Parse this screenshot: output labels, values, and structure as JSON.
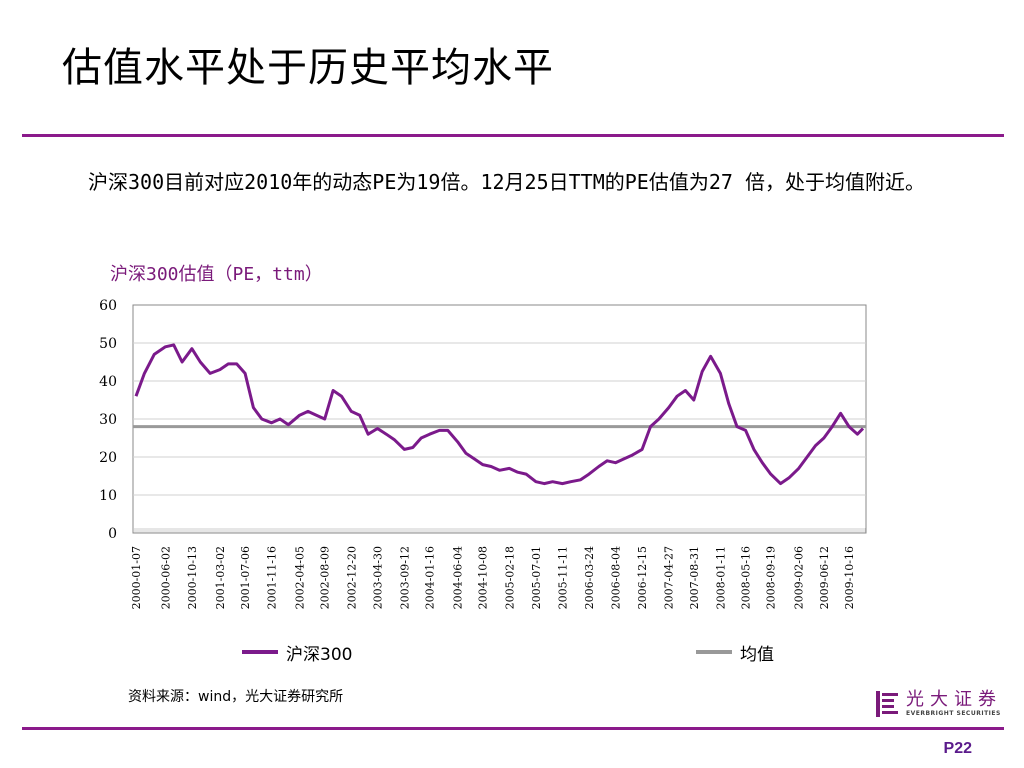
{
  "slide": {
    "title": "估值水平处于历史平均水平",
    "body": "沪深300目前对应2010年的动态PE为19倍。12月25日TTM的PE估值为27 倍，处于均值附近。",
    "source": "资料来源：wind，光大证券研究所",
    "page": "P22",
    "logo": {
      "cn": "光大证券",
      "en": "EVERBRIGHT SECURITIES"
    }
  },
  "colors": {
    "accent": "#8b1a8b",
    "series_main": "#7b1a8b",
    "series_mean": "#999999",
    "page_number": "#5a1a8b"
  },
  "chart_data": {
    "type": "line",
    "title": "沪深300估值（PE，ttm）",
    "xlabel": "",
    "ylabel": "",
    "ylim": [
      0,
      60
    ],
    "yticks": [
      0,
      10,
      20,
      30,
      40,
      50,
      60
    ],
    "grid": true,
    "legend_position": "bottom",
    "x_tick_labels": [
      "2000-01-07",
      "2000-06-02",
      "2000-10-13",
      "2001-03-02",
      "2001-07-06",
      "2001-11-16",
      "2002-04-05",
      "2002-08-09",
      "2002-12-20",
      "2003-04-30",
      "2003-09-12",
      "2004-01-16",
      "2004-06-04",
      "2004-10-08",
      "2005-02-18",
      "2005-07-01",
      "2005-11-11",
      "2006-03-24",
      "2006-08-04",
      "2006-12-15",
      "2007-04-27",
      "2007-08-31",
      "2008-01-11",
      "2008-05-16",
      "2008-09-19",
      "2009-02-06",
      "2009-06-12",
      "2009-10-16"
    ],
    "series": [
      {
        "name": "沪深300",
        "x": [
          "2000-01-07",
          "2000-02-18",
          "2000-04-07",
          "2000-06-02",
          "2000-07-14",
          "2000-08-25",
          "2000-10-13",
          "2000-11-24",
          "2001-01-12",
          "2001-03-02",
          "2001-04-13",
          "2001-05-25",
          "2001-07-06",
          "2001-08-17",
          "2001-09-28",
          "2001-11-16",
          "2001-12-28",
          "2002-02-08",
          "2002-04-05",
          "2002-05-17",
          "2002-06-28",
          "2002-08-09",
          "2002-09-20",
          "2002-11-01",
          "2002-12-20",
          "2003-01-31",
          "2003-03-14",
          "2003-04-30",
          "2003-06-13",
          "2003-07-25",
          "2003-09-12",
          "2003-10-24",
          "2003-12-05",
          "2004-01-16",
          "2004-03-05",
          "2004-04-16",
          "2004-06-04",
          "2004-07-16",
          "2004-08-27",
          "2004-10-08",
          "2004-11-19",
          "2004-12-31",
          "2005-02-18",
          "2005-04-01",
          "2005-05-13",
          "2005-07-01",
          "2005-08-12",
          "2005-09-23",
          "2005-11-11",
          "2005-12-23",
          "2006-02-10",
          "2006-03-24",
          "2006-05-12",
          "2006-06-23",
          "2006-08-04",
          "2006-09-15",
          "2006-10-27",
          "2006-12-15",
          "2007-01-26",
          "2007-03-09",
          "2007-04-27",
          "2007-06-08",
          "2007-07-20",
          "2007-08-31",
          "2007-10-12",
          "2007-11-23",
          "2008-01-11",
          "2008-02-22",
          "2008-04-03",
          "2008-05-16",
          "2008-06-27",
          "2008-08-08",
          "2008-09-19",
          "2008-11-07",
          "2008-12-19",
          "2009-02-06",
          "2009-03-20",
          "2009-05-01",
          "2009-06-12",
          "2009-07-24",
          "2009-09-04",
          "2009-10-16",
          "2009-11-27",
          "2009-12-25"
        ],
        "values": [
          36,
          42,
          47,
          49,
          49.5,
          45,
          48.5,
          45,
          42,
          43,
          44.5,
          44.5,
          42,
          33,
          30,
          29,
          30,
          28.5,
          31,
          32,
          31,
          30,
          37.5,
          36,
          32,
          31,
          26,
          27.5,
          26,
          24.5,
          22,
          22.5,
          25,
          26,
          27,
          27,
          24,
          21,
          19.5,
          18,
          17.5,
          16.5,
          17,
          16,
          15.5,
          13.5,
          13,
          13.5,
          13,
          13.5,
          14,
          15.5,
          17.5,
          19,
          18.5,
          19.5,
          20.5,
          22,
          28,
          30,
          33,
          36,
          37.5,
          35,
          42.5,
          46.5,
          42,
          34,
          28,
          27,
          22,
          18.5,
          15.5,
          13,
          14.5,
          17,
          20,
          23,
          25,
          28,
          31.5,
          28,
          26,
          27.5
        ]
      },
      {
        "name": "均值",
        "x": [
          "2000-01-07",
          "2009-12-25"
        ],
        "values": [
          28,
          28
        ]
      }
    ]
  }
}
